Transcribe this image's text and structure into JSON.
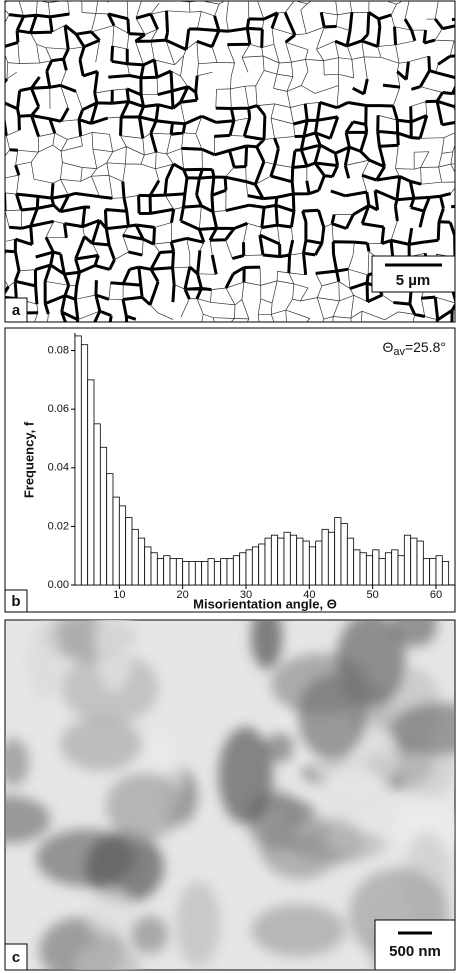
{
  "panels": {
    "a": {
      "label": "a",
      "scale_bar": "5 µm"
    },
    "c": {
      "label": "c",
      "scale_bar": "500 nm"
    }
  },
  "chart_data": {
    "type": "histogram",
    "panel_label": "b",
    "x_label": "Misorientation angle, Θ",
    "y_label": "Frequency, f",
    "annotation": {
      "symbol": "Θ",
      "subscript": "av",
      "value": "=25.8°"
    },
    "bins": [
      3,
      4,
      5,
      6,
      7,
      8,
      9,
      10,
      11,
      12,
      13,
      14,
      15,
      16,
      17,
      18,
      19,
      20,
      21,
      22,
      23,
      24,
      25,
      26,
      27,
      28,
      29,
      30,
      31,
      32,
      33,
      34,
      35,
      36,
      37,
      38,
      39,
      40,
      41,
      42,
      43,
      44,
      45,
      46,
      47,
      48,
      49,
      50,
      51,
      52,
      53,
      54,
      55,
      56,
      57,
      58,
      59,
      60,
      61,
      62
    ],
    "values": [
      0.085,
      0.082,
      0.07,
      0.055,
      0.047,
      0.038,
      0.03,
      0.027,
      0.023,
      0.019,
      0.016,
      0.013,
      0.011,
      0.009,
      0.01,
      0.009,
      0.009,
      0.008,
      0.008,
      0.008,
      0.008,
      0.009,
      0.008,
      0.009,
      0.009,
      0.01,
      0.011,
      0.012,
      0.013,
      0.014,
      0.016,
      0.017,
      0.016,
      0.018,
      0.017,
      0.016,
      0.015,
      0.013,
      0.015,
      0.019,
      0.018,
      0.023,
      0.021,
      0.016,
      0.012,
      0.011,
      0.01,
      0.012,
      0.009,
      0.011,
      0.012,
      0.01,
      0.017,
      0.016,
      0.015,
      0.009,
      0.009,
      0.01,
      0.008
    ],
    "color": "#ffffff",
    "xlim": [
      3,
      63
    ],
    "xticks": [
      10,
      20,
      30,
      40,
      50,
      60
    ],
    "ylim": [
      0,
      0.086
    ],
    "yticks": [
      {
        "value": 0,
        "label": "0.00"
      },
      0.02,
      0.04,
      0.06,
      0.08
    ]
  }
}
